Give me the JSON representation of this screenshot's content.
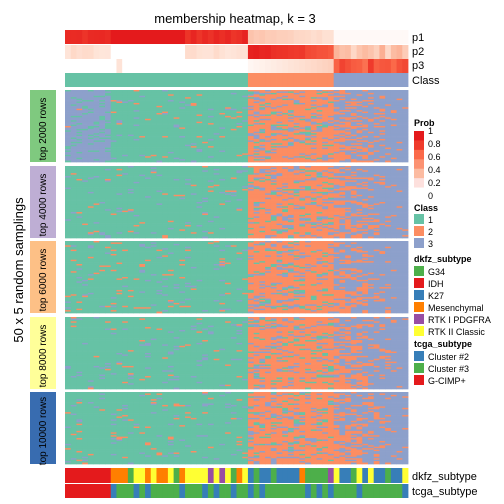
{
  "chart_data": {
    "type": "heatmap",
    "title": "membership heatmap, k = 3",
    "ylabel": "50 x 5 random samplings",
    "samples_count": 60,
    "row_annotations": [
      "p1",
      "p2",
      "p3",
      "Class"
    ],
    "column_annotations": [
      "dkfz_subtype",
      "tcga_subtype"
    ],
    "groups": [
      {
        "label": "top 2000 rows",
        "color": "#7FC97F"
      },
      {
        "label": "top 4000 rows",
        "color": "#BEAED4"
      },
      {
        "label": "top 6000 rows",
        "color": "#FDC086"
      },
      {
        "label": "top 8000 rows",
        "color": "#FFFF99"
      },
      {
        "label": "top 10000 rows",
        "color": "#386CB0"
      }
    ],
    "class_split": {
      "class1_end": 32,
      "class2_end": 47
    },
    "class_colors": {
      "1": "#66C2A5",
      "2": "#FC8D62",
      "3": "#8DA0CB"
    },
    "legends": {
      "prob": {
        "title": "Prob",
        "ticks": [
          "1",
          "0.8",
          "0.6",
          "0.4",
          "0.2",
          "0"
        ],
        "colors": [
          "#ffffff",
          "#fde0dd",
          "#fcbba1",
          "#fc9272",
          "#fb6a4a",
          "#ef3b2c",
          "#e41a1c"
        ]
      },
      "class": {
        "title": "Class",
        "items": [
          {
            "label": "1",
            "color": "#66C2A5"
          },
          {
            "label": "2",
            "color": "#FC8D62"
          },
          {
            "label": "3",
            "color": "#8DA0CB"
          }
        ]
      },
      "dkfz_subtype": {
        "title": "dkfz_subtype",
        "items": [
          {
            "label": "G34",
            "color": "#4DAF4A"
          },
          {
            "label": "IDH",
            "color": "#E41A1C"
          },
          {
            "label": "K27",
            "color": "#377EB8"
          },
          {
            "label": "Mesenchymal",
            "color": "#FF7F00"
          },
          {
            "label": "RTK I PDGFRA",
            "color": "#984EA3"
          },
          {
            "label": "RTK II Classic",
            "color": "#FFFF33"
          }
        ]
      },
      "tcga_subtype": {
        "title": "tcga_subtype",
        "items": [
          {
            "label": "Cluster #2",
            "color": "#377EB8"
          },
          {
            "label": "Cluster #3",
            "color": "#4DAF4A"
          },
          {
            "label": "G-CIMP+",
            "color": "#E41A1C"
          }
        ]
      }
    }
  }
}
